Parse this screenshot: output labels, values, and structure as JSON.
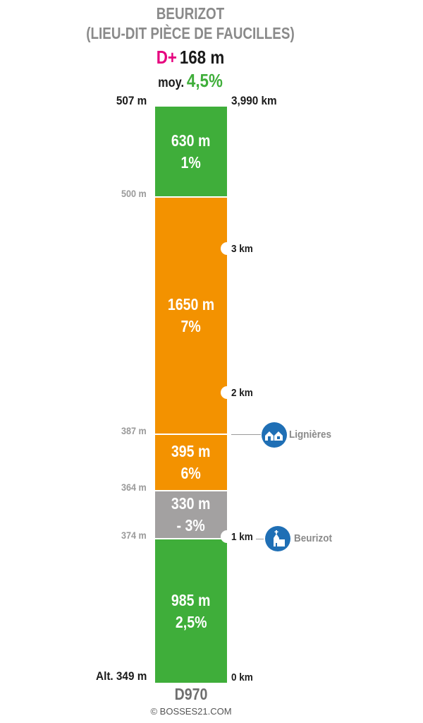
{
  "title": {
    "line1": "BEURIZOT",
    "line2": "(LIEU-DIT PIÈCE DE FAUCILLES)"
  },
  "climb": {
    "dplus_label": "D+",
    "dplus_value": "168 m",
    "avg_label": "moy.",
    "avg_value": "4,5%"
  },
  "colors": {
    "green": "#3fae3a",
    "orange": "#f39200",
    "grey": "#a3a1a1",
    "magenta": "#e6007e",
    "poi_blue": "#1f6fb5"
  },
  "segments": [
    {
      "length": "630 m",
      "grade": "1%",
      "color": "green"
    },
    {
      "length": "1650 m",
      "grade": "7%",
      "color": "orange"
    },
    {
      "length": "395 m",
      "grade": "6%",
      "color": "orange"
    },
    {
      "length": "330 m",
      "grade": "- 3%",
      "color": "grey"
    },
    {
      "length": "985 m",
      "grade": "2,5%",
      "color": "green"
    }
  ],
  "altitudes": {
    "top": "507 m",
    "a500": "500 m",
    "a387": "387 m",
    "a364": "364 m",
    "a374": "374 m",
    "start": "Alt. 349 m"
  },
  "distances": {
    "end": "3,990 km",
    "km3": "3 km",
    "km2": "2 km",
    "km1": "1 km",
    "start": "0 km"
  },
  "poi": [
    {
      "name": "Lignières",
      "icon": "village-icon"
    },
    {
      "name": "Beurizot",
      "icon": "church-icon"
    }
  ],
  "road": "D970",
  "copyright": "© BOSSES21.COM"
}
